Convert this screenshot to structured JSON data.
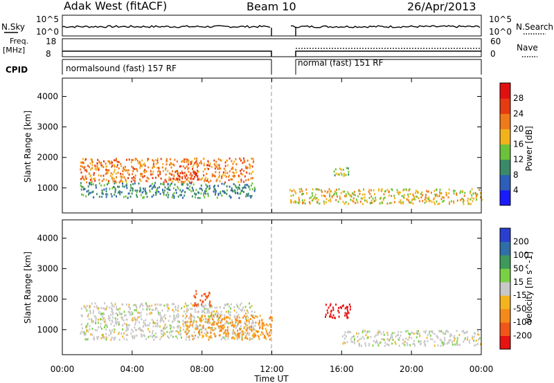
{
  "header": {
    "station": "Adak West (fitACF)",
    "beam": "Beam 10",
    "date": "26/Apr/2013"
  },
  "summary_panels": {
    "nsky_label": "N.Sky",
    "nsearch_label": "N.Search",
    "noise_ticks": [
      "10^5",
      "10^0"
    ],
    "noise_ticks_right": [
      "10^5",
      "10^0"
    ],
    "freq_label": "Freq.",
    "freq_unit": "[MHz]",
    "freq_ticks": [
      "18",
      "8"
    ],
    "nave_label": "Nave",
    "nave_ticks": [
      "60",
      "0"
    ],
    "cpid_label": "CPID",
    "cpid_segments": [
      {
        "label": "normalsound (fast) 157 RF",
        "start_ut": 0,
        "end_ut": 12
      },
      {
        "label": "normal (fast) 151 RF",
        "start_ut": 13,
        "end_ut": 24
      }
    ]
  },
  "chart_data": [
    {
      "type": "heatmap",
      "title": "",
      "xlabel": "Time UT",
      "ylabel": "Slant Range [km]",
      "colorbar_label": "Power [dB]",
      "colorbar_ticks": [
        4,
        8,
        12,
        16,
        20,
        24,
        28
      ],
      "colorbar_colors": [
        "#1a1aff",
        "#2e5fb8",
        "#3a8a6a",
        "#6cc23a",
        "#f2b21c",
        "#f07a1a",
        "#e63a10",
        "#e01010"
      ],
      "x_ticks": [
        "00:00",
        "04:00",
        "08:00",
        "12:00",
        "16:00",
        "20:00",
        "00:00"
      ],
      "xlim": [
        0,
        24
      ],
      "y_ticks": [
        1000,
        2000,
        3000,
        4000
      ],
      "ylim": [
        180,
        4600
      ],
      "data_gap_ut": [
        12,
        13
      ],
      "features": [
        {
          "ut_start": 1,
          "ut_end": 11,
          "range_km": [
            1200,
            2000
          ],
          "level_db": 24
        },
        {
          "ut_start": 1,
          "ut_end": 11,
          "range_km": [
            700,
            1200
          ],
          "level_db": 12
        },
        {
          "ut_start": 6,
          "ut_end": 8,
          "range_km": [
            1300,
            1600
          ],
          "level_db": 28
        },
        {
          "ut_start": 13,
          "ut_end": 24,
          "range_km": [
            500,
            1000
          ],
          "level_db": 20
        },
        {
          "ut_start": 15.5,
          "ut_end": 16.5,
          "range_km": [
            1400,
            1700
          ],
          "level_db": 16
        }
      ]
    },
    {
      "type": "heatmap",
      "title": "",
      "xlabel": "Time UT",
      "ylabel": "Slant Range [km]",
      "colorbar_label": "Velocity [m s^-1]",
      "colorbar_ticks": [
        200,
        100,
        50,
        15,
        -15,
        -50,
        -100,
        -200
      ],
      "colorbar_colors": [
        "#2a3fd0",
        "#2f6fa8",
        "#3e9a5a",
        "#7ad044",
        "#c8c8c8",
        "#f5b41e",
        "#f58a1a",
        "#f0561a",
        "#e81212"
      ],
      "x_ticks": [
        "00:00",
        "04:00",
        "08:00",
        "12:00",
        "16:00",
        "20:00",
        "00:00"
      ],
      "xlim": [
        0,
        24
      ],
      "y_ticks": [
        1000,
        2000,
        3000,
        4000
      ],
      "ylim": [
        180,
        4600
      ],
      "data_gap_ut": [
        12,
        13
      ],
      "features": [
        {
          "ut_start": 1,
          "ut_end": 11,
          "range_km": [
            700,
            1900
          ],
          "velocity": 0
        },
        {
          "ut_start": 7,
          "ut_end": 12,
          "range_km": [
            700,
            1500
          ],
          "velocity": -60
        },
        {
          "ut_start": 7.5,
          "ut_end": 8.5,
          "range_km": [
            1800,
            2300
          ],
          "velocity": -150
        },
        {
          "ut_start": 15,
          "ut_end": 16.5,
          "range_km": [
            1400,
            1900
          ],
          "velocity": -200
        },
        {
          "ut_start": 16,
          "ut_end": 24,
          "range_km": [
            500,
            1000
          ],
          "velocity": 0
        }
      ]
    }
  ]
}
